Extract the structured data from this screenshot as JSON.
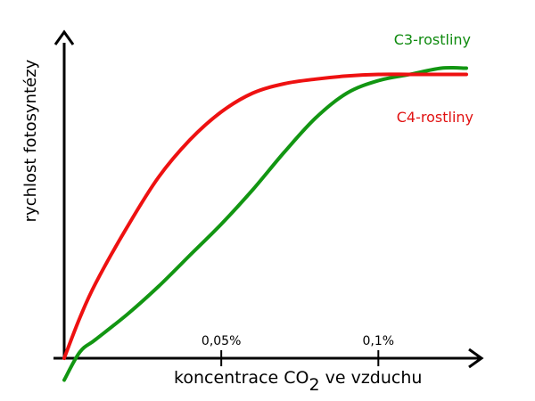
{
  "chart_data": {
    "type": "line",
    "title": "",
    "ylabel": "rychlost fotosyntézy",
    "xlabel_parts": {
      "main": "koncentrace CO",
      "sub": "2",
      "tail": " ve vzduchu"
    },
    "x_ticks": [
      {
        "value": 0.05,
        "label": "0,05%"
      },
      {
        "value": 0.1,
        "label": "0,1%"
      }
    ],
    "xlim": [
      0,
      0.13
    ],
    "ylim": [
      -0.08,
      1.0
    ],
    "grid": false,
    "series": [
      {
        "name": "C3-rostliny",
        "color": "#129612",
        "label_color": "#0e8a0e",
        "x": [
          0,
          0.005,
          0.01,
          0.02,
          0.03,
          0.04,
          0.05,
          0.06,
          0.07,
          0.08,
          0.09,
          0.1,
          0.11,
          0.12,
          0.128
        ],
        "y": [
          -0.07,
          0.02,
          0.06,
          0.14,
          0.23,
          0.33,
          0.43,
          0.54,
          0.66,
          0.77,
          0.85,
          0.89,
          0.91,
          0.93,
          0.93
        ]
      },
      {
        "name": "C4-rostliny",
        "color": "#ee1111",
        "label_color": "#e11111",
        "x": [
          0,
          0.005,
          0.01,
          0.02,
          0.03,
          0.04,
          0.05,
          0.06,
          0.07,
          0.08,
          0.09,
          0.1,
          0.11,
          0.12,
          0.128
        ],
        "y": [
          0,
          0.13,
          0.24,
          0.42,
          0.58,
          0.7,
          0.79,
          0.85,
          0.88,
          0.895,
          0.905,
          0.91,
          0.91,
          0.91,
          0.91
        ]
      }
    ]
  }
}
